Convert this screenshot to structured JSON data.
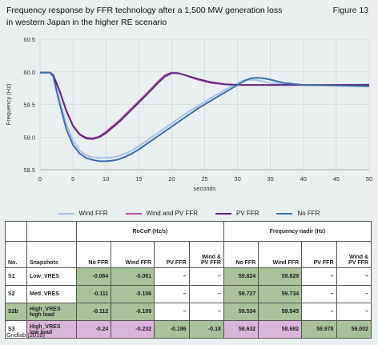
{
  "header": {
    "title_line1": "Frequency response by FFR technology after a 1,500 MW generation loss",
    "title_line2": "in western Japan in the higher RE scenario",
    "figure": "Figure 13"
  },
  "chart_data": {
    "type": "line",
    "ylabel": "Frequency (Hz)",
    "xlabel": "seconds",
    "xlim": [
      0,
      50
    ],
    "ylim": [
      58.5,
      60.5
    ],
    "xticks": [
      "0",
      "5",
      "10",
      "15",
      "20",
      "25",
      "30",
      "35",
      "40",
      "45",
      "50"
    ],
    "yticks": [
      "58.5",
      "59.0",
      "59.5",
      "60.0",
      "60.5"
    ],
    "grid": true,
    "legend_position": "bottom",
    "series": [
      {
        "name": "Wind FFR",
        "color": "#a6c3e6",
        "points": [
          [
            0,
            59.99
          ],
          [
            1.5,
            59.99
          ],
          [
            2,
            59.93
          ],
          [
            3,
            59.55
          ],
          [
            4,
            59.2
          ],
          [
            5,
            58.95
          ],
          [
            6,
            58.8
          ],
          [
            7,
            58.72
          ],
          [
            8,
            58.69
          ],
          [
            9,
            58.68
          ],
          [
            10,
            58.68
          ],
          [
            11,
            58.69
          ],
          [
            12,
            58.71
          ],
          [
            13,
            58.75
          ],
          [
            14,
            58.8
          ],
          [
            15,
            58.86
          ],
          [
            16,
            58.93
          ],
          [
            17,
            59.0
          ],
          [
            18,
            59.07
          ],
          [
            19,
            59.14
          ],
          [
            20,
            59.21
          ],
          [
            22,
            59.35
          ],
          [
            24,
            59.48
          ],
          [
            26,
            59.6
          ],
          [
            28,
            59.72
          ],
          [
            30,
            59.83
          ],
          [
            31,
            59.87
          ],
          [
            32,
            59.88
          ],
          [
            33,
            59.87
          ],
          [
            34,
            59.85
          ],
          [
            35,
            59.83
          ],
          [
            37,
            59.81
          ],
          [
            40,
            59.8
          ],
          [
            45,
            59.8
          ],
          [
            50,
            59.81
          ]
        ]
      },
      {
        "name": "Wind and PV FFR",
        "color": "#b84fa3",
        "points": [
          [
            0,
            59.99
          ],
          [
            1.5,
            59.99
          ],
          [
            2,
            59.95
          ],
          [
            3,
            59.7
          ],
          [
            4,
            59.4
          ],
          [
            5,
            59.18
          ],
          [
            6,
            59.05
          ],
          [
            7,
            58.99
          ],
          [
            8,
            58.98
          ],
          [
            9,
            59.01
          ],
          [
            10,
            59.08
          ],
          [
            12,
            59.25
          ],
          [
            14,
            59.45
          ],
          [
            16,
            59.65
          ],
          [
            18,
            59.86
          ],
          [
            19,
            59.95
          ],
          [
            20,
            59.99
          ],
          [
            21,
            59.98
          ],
          [
            22,
            59.95
          ],
          [
            24,
            59.88
          ],
          [
            26,
            59.83
          ],
          [
            28,
            59.81
          ],
          [
            30,
            59.8
          ],
          [
            35,
            59.8
          ],
          [
            40,
            59.8
          ],
          [
            50,
            59.8
          ]
        ]
      },
      {
        "name": "PV FFR",
        "color": "#5e2a80",
        "points": [
          [
            0,
            59.99
          ],
          [
            1.5,
            59.99
          ],
          [
            2,
            59.95
          ],
          [
            3,
            59.7
          ],
          [
            4,
            59.4
          ],
          [
            5,
            59.17
          ],
          [
            6,
            59.04
          ],
          [
            7,
            58.98
          ],
          [
            8,
            58.97
          ],
          [
            9,
            59.0
          ],
          [
            10,
            59.06
          ],
          [
            12,
            59.23
          ],
          [
            14,
            59.43
          ],
          [
            16,
            59.63
          ],
          [
            18,
            59.84
          ],
          [
            19,
            59.93
          ],
          [
            20,
            59.98
          ],
          [
            21,
            59.98
          ],
          [
            22,
            59.95
          ],
          [
            24,
            59.89
          ],
          [
            26,
            59.84
          ],
          [
            28,
            59.81
          ],
          [
            30,
            59.8
          ],
          [
            35,
            59.8
          ],
          [
            40,
            59.8
          ],
          [
            50,
            59.8
          ]
        ]
      },
      {
        "name": "No FFR",
        "color": "#3f6ea8",
        "points": [
          [
            0,
            59.99
          ],
          [
            1.5,
            59.99
          ],
          [
            2,
            59.93
          ],
          [
            3,
            59.5
          ],
          [
            4,
            59.12
          ],
          [
            5,
            58.88
          ],
          [
            6,
            58.75
          ],
          [
            7,
            58.68
          ],
          [
            8,
            58.65
          ],
          [
            9,
            58.63
          ],
          [
            10,
            58.63
          ],
          [
            11,
            58.64
          ],
          [
            12,
            58.66
          ],
          [
            13,
            58.7
          ],
          [
            14,
            58.75
          ],
          [
            15,
            58.81
          ],
          [
            16,
            58.88
          ],
          [
            17,
            58.95
          ],
          [
            18,
            59.02
          ],
          [
            19,
            59.09
          ],
          [
            20,
            59.16
          ],
          [
            22,
            59.3
          ],
          [
            24,
            59.44
          ],
          [
            26,
            59.56
          ],
          [
            28,
            59.68
          ],
          [
            30,
            59.8
          ],
          [
            31,
            59.86
          ],
          [
            32,
            59.9
          ],
          [
            33,
            59.91
          ],
          [
            34,
            59.9
          ],
          [
            35,
            59.88
          ],
          [
            37,
            59.83
          ],
          [
            40,
            59.8
          ],
          [
            45,
            59.79
          ],
          [
            50,
            59.78
          ]
        ]
      }
    ]
  },
  "table": {
    "group_rocof": "RoCoF (Hz/s)",
    "group_nadir": "Frequency nadir (Hz)",
    "col_no": "No.",
    "col_snapshots": "Snapshots",
    "rocof_cols": [
      "No FFR",
      "Wind FFR",
      "PV FFR",
      "Wind &\nPV FFR"
    ],
    "nadir_cols": [
      "No FFR",
      "Wind FFR",
      "PV FFR",
      "Wind &\nPV FFR"
    ],
    "rows": [
      {
        "no": "S1",
        "snap": "Low_VRES",
        "rocof": [
          "-0.064",
          "-0.061",
          "–",
          "–"
        ],
        "nadir": [
          "59.824",
          "59.829",
          "–",
          "–"
        ]
      },
      {
        "no": "S2",
        "snap": "Med_VRES",
        "rocof": [
          "-0.111",
          "-0.106",
          "–",
          "–"
        ],
        "nadir": [
          "59.727",
          "59.734",
          "–",
          "–"
        ]
      },
      {
        "no": "S2b",
        "snap": "High_VRES\nhigh load",
        "rocof": [
          "-0.112",
          "-0.109",
          "–",
          "–"
        ],
        "nadir": [
          "59.534",
          "59.543",
          "–",
          "–"
        ]
      },
      {
        "no": "S3",
        "snap": "High_VRES\nlow load",
        "rocof": [
          "-0.24",
          "-0.232",
          "-0.186",
          "-0.18"
        ],
        "nadir": [
          "58.632",
          "58.682",
          "58.978",
          "59.002"
        ]
      }
    ],
    "colors": {
      "green": "#a9c29a",
      "pink": "#dbb4d9"
    }
  },
  "source": "Gridlab (2019)"
}
